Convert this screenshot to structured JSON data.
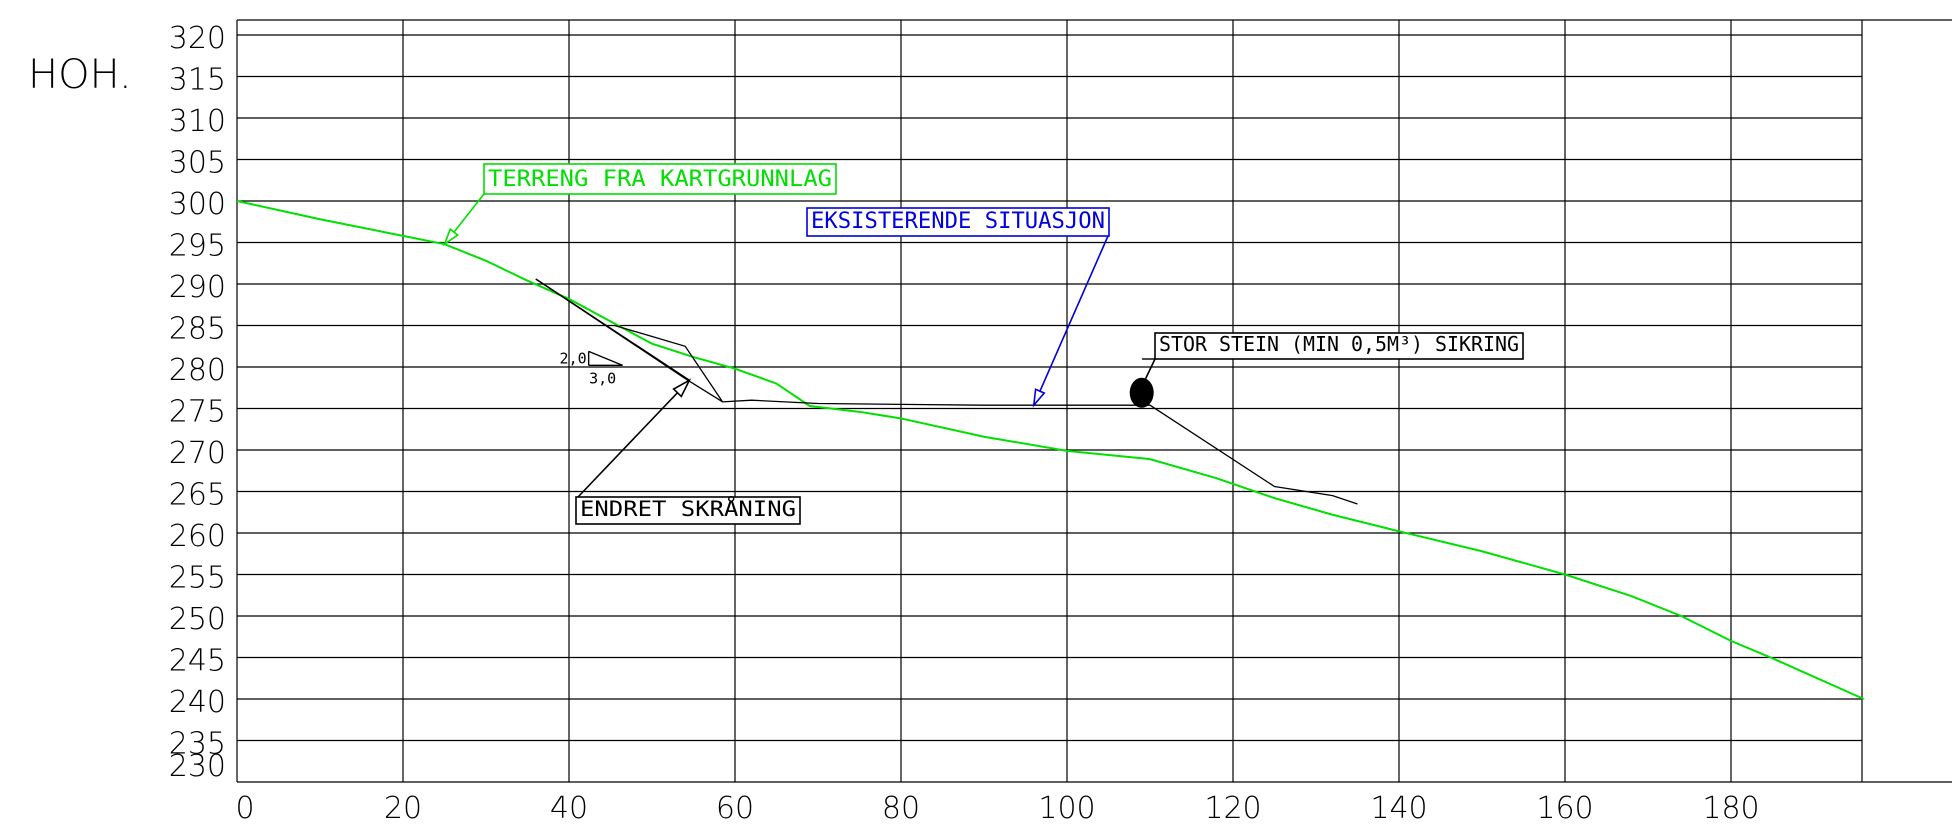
{
  "chart_data": {
    "type": "line",
    "title": "",
    "ylabel": "HOH.",
    "xlabel": "",
    "x_ticks": [
      "0",
      "20",
      "40",
      "60",
      "80",
      "100",
      "120",
      "140",
      "160",
      "180"
    ],
    "y_ticks": [
      "320",
      "315",
      "310",
      "305",
      "300",
      "295",
      "290",
      "285",
      "280",
      "275",
      "270",
      "265",
      "260",
      "255",
      "250",
      "245",
      "240",
      "235",
      "230"
    ],
    "xlim": [
      0,
      196
    ],
    "ylim": [
      230,
      322
    ],
    "grid": true,
    "series": [
      {
        "name": "TERRENG FRA KARTGRUNNLAG",
        "color": "#00e000",
        "x": [
          0,
          10,
          20,
          25,
          30,
          35,
          40,
          45,
          50,
          55,
          60,
          65,
          69,
          75,
          80,
          90,
          100,
          110,
          118,
          125,
          132,
          140,
          150,
          160,
          168,
          174,
          180,
          185,
          196
        ],
        "y": [
          300,
          297.8,
          295.8,
          294.8,
          292.8,
          290.4,
          288.2,
          285.5,
          282.8,
          281.2,
          279.8,
          278,
          275.3,
          274.6,
          273.8,
          271.6,
          269.9,
          268.9,
          266.6,
          264.2,
          262.2,
          260.2,
          257.8,
          255,
          252.4,
          250,
          247,
          244.9,
          240
        ]
      },
      {
        "name": "EKSISTERENDE SITUASJON",
        "color": "#000000",
        "x": [
          36,
          54,
          58.5,
          62,
          70,
          80,
          90,
          100,
          110,
          125,
          132,
          135
        ],
        "y": [
          290.6,
          278.6,
          275.8,
          276,
          275.6,
          275.5,
          275.4,
          275.4,
          275.4,
          265.6,
          264.5,
          263.5
        ]
      },
      {
        "name": "ENDRET SKRANING",
        "color": "#000000",
        "x": [
          45.5,
          54,
          58.5
        ],
        "y": [
          285,
          282.5,
          275.8
        ]
      }
    ],
    "annotations": [
      {
        "text": "TERRENG FRA KARTGRUNNLAG",
        "color": "#00e000",
        "point": [
          25,
          294.8
        ]
      },
      {
        "text": "EKSISTERENDE SITUASJON",
        "color": "#0000e0",
        "point": [
          96,
          275.4
        ]
      },
      {
        "text": "STOR STEIN (MIN 0,5M³) SIKRING",
        "color": "#000000",
        "point": [
          109,
          277.6
        ]
      },
      {
        "text": "ENDRET SKRÅNING",
        "color": "#000000",
        "point": [
          54.5,
          278.4
        ]
      }
    ],
    "slope_symbol": {
      "rise": "2,0",
      "run": "3,0"
    }
  }
}
